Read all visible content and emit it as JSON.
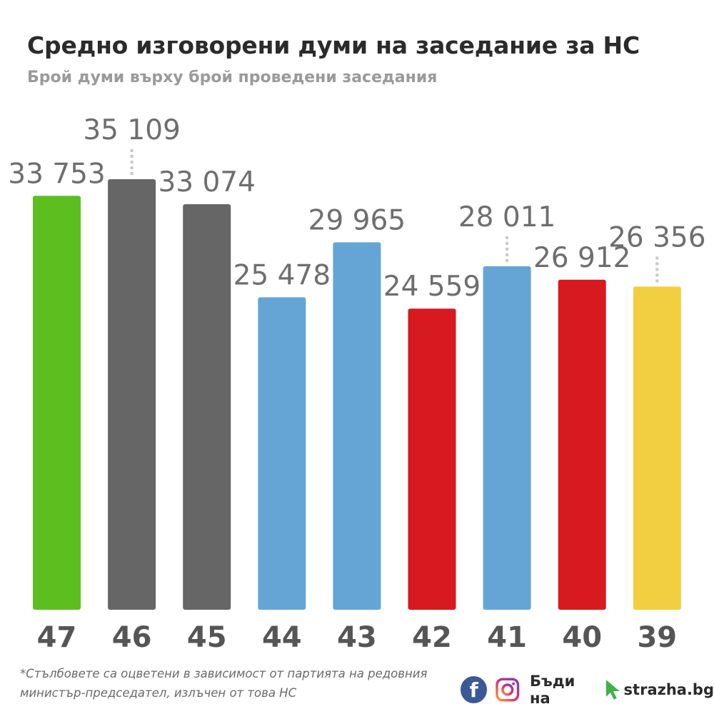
{
  "header": {
    "title": "Средно изговорени думи на заседание за НС",
    "subtitle": "Брой думи върху брой проведени заседания"
  },
  "chart_data": {
    "type": "bar",
    "categories": [
      "47",
      "46",
      "45",
      "44",
      "43",
      "42",
      "41",
      "40",
      "39"
    ],
    "values": [
      33753,
      35109,
      33074,
      25478,
      29965,
      24559,
      28011,
      26912,
      26356
    ],
    "value_labels": [
      "33 753",
      "35 109",
      "33 074",
      "25 478",
      "29 965",
      "24 559",
      "28 011",
      "26 912",
      "26 356"
    ],
    "colors": [
      "#5dbf1f",
      "#666666",
      "#666666",
      "#65a5d6",
      "#65a5d6",
      "#d71920",
      "#65a5d6",
      "#d71920",
      "#f2cf41"
    ],
    "ylim": [
      0,
      35109
    ],
    "grid": false,
    "legend": "none"
  },
  "footer": {
    "footnote": "*Стълбовете са оцветени в зависимост от партията на редовния министър-председател, излъчен от това НС",
    "brand_text": "Бъди на",
    "brand_site": "strazha.bg",
    "facebook_glyph": "f",
    "icons": [
      "facebook-icon",
      "instagram-icon",
      "cursor-arrow-icon"
    ],
    "brand_green": "#3db048"
  }
}
